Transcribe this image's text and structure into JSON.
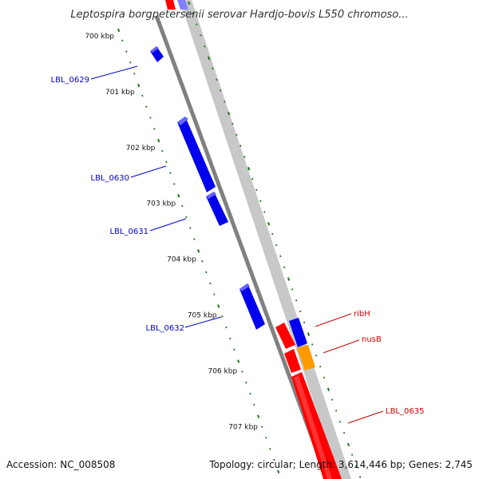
{
  "title": "Leptospira borgpetersenii serovar Hardjo-bovis L550 chromoso...",
  "footer": {
    "accession": "Accession: NC_008508",
    "summary": "Topology: circular; Length: 3,614,446 bp; Genes: 2,745"
  },
  "colors": {
    "backbone": "#808080",
    "tick": "#1a7a1a",
    "forward_gene": "#0000ee",
    "reverse_gene": "#ff0000",
    "reverse_secondary": "#ff9900",
    "reverse_track_bg": "#c8c8c8",
    "forward_label": "#0000cc",
    "reverse_label": "#cc0000"
  },
  "ticks": [
    "700 kbp",
    "701 kbp",
    "702 kbp",
    "703 kbp",
    "704 kbp",
    "705 kbp",
    "706 kbp",
    "707 kbp"
  ],
  "forward_genes": [
    {
      "label": "LBL_0629"
    },
    {
      "label": "LBL_0630"
    },
    {
      "label": "LBL_0631"
    },
    {
      "label": "LBL_0632"
    }
  ],
  "reverse_genes": [
    {
      "label": "ribH"
    },
    {
      "label": "nusB"
    },
    {
      "label": "LBL_0635"
    }
  ]
}
